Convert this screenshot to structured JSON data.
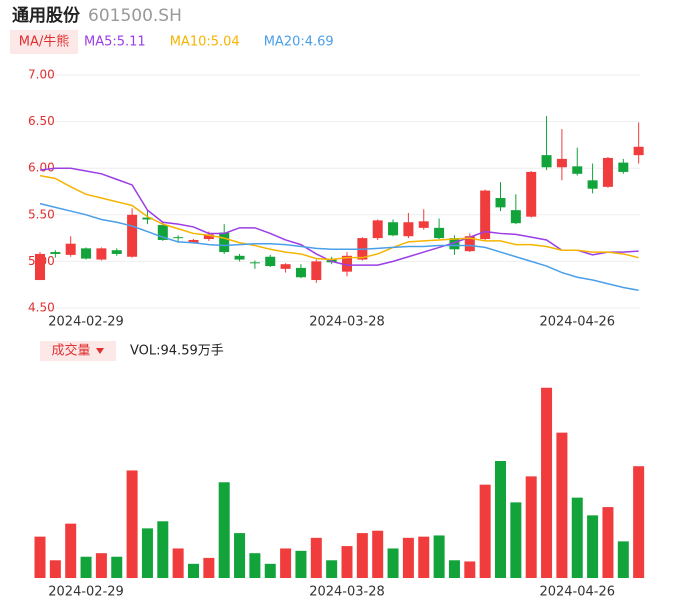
{
  "header": {
    "title": "通用股份",
    "code": "601500.SH"
  },
  "chart_data": [
    {
      "type": "candlestick",
      "button": "MA/牛熊",
      "categories": [
        null,
        null,
        null,
        "2024-02-29",
        null,
        null,
        null,
        null,
        null,
        null,
        null,
        null,
        null,
        null,
        null,
        null,
        null,
        null,
        null,
        null,
        "2024-03-28",
        null,
        null,
        null,
        null,
        null,
        null,
        null,
        null,
        null,
        null,
        null,
        null,
        null,
        null,
        "2024-04-26",
        null,
        null,
        null,
        null
      ],
      "open": [
        4.8,
        5.1,
        5.07,
        5.14,
        5.02,
        5.12,
        5.05,
        5.47,
        5.39,
        5.26,
        5.2,
        5.24,
        5.31,
        5.06,
        4.99,
        5.05,
        4.92,
        4.93,
        4.8,
        5.03,
        4.89,
        5.02,
        5.25,
        5.42,
        5.27,
        5.36,
        5.36,
        5.25,
        5.11,
        5.24,
        5.68,
        5.55,
        5.48,
        6.14,
        6.01,
        6.02,
        5.87,
        5.8,
        6.06,
        6.14
      ],
      "high": [
        5.1,
        5.12,
        5.27,
        5.15,
        5.15,
        5.14,
        5.57,
        5.55,
        5.42,
        5.28,
        5.24,
        5.32,
        5.4,
        5.08,
        5.01,
        5.07,
        4.98,
        4.97,
        5.02,
        5.05,
        5.1,
        5.26,
        5.45,
        5.45,
        5.52,
        5.56,
        5.46,
        5.28,
        5.3,
        5.77,
        5.85,
        5.72,
        5.97,
        6.56,
        6.42,
        6.22,
        6.05,
        6.12,
        6.1,
        6.49
      ],
      "low": [
        4.8,
        5.04,
        5.05,
        5.02,
        5.01,
        5.06,
        5.04,
        5.4,
        5.22,
        5.2,
        5.19,
        5.22,
        5.08,
        5.0,
        4.92,
        4.94,
        4.88,
        4.82,
        4.77,
        4.97,
        4.84,
        5.01,
        5.23,
        5.27,
        5.25,
        5.34,
        5.24,
        5.07,
        5.1,
        5.23,
        5.54,
        5.4,
        5.47,
        5.98,
        5.87,
        5.92,
        5.73,
        5.79,
        5.94,
        6.05
      ],
      "close": [
        5.08,
        5.08,
        5.19,
        5.03,
        5.14,
        5.08,
        5.5,
        5.45,
        5.23,
        5.25,
        5.23,
        5.29,
        5.1,
        5.02,
        4.98,
        4.95,
        4.97,
        4.83,
        5.0,
        4.99,
        5.06,
        5.25,
        5.44,
        5.28,
        5.42,
        5.43,
        5.25,
        5.13,
        5.27,
        5.76,
        5.58,
        5.41,
        5.96,
        6.01,
        6.1,
        5.94,
        5.78,
        6.11,
        5.96,
        6.23
      ],
      "up_color": "#f03c3c",
      "down_color": "#12a33a",
      "series": [
        {
          "name": "MA5:5.11",
          "color": "#9b3ee6",
          "values": [
            5.98,
            6.0,
            6.0,
            5.97,
            5.94,
            5.88,
            5.82,
            5.55,
            5.42,
            5.4,
            5.37,
            5.3,
            5.3,
            5.36,
            5.36,
            5.3,
            5.23,
            5.18,
            5.08,
            5.0,
            4.96,
            4.96,
            4.96,
            5.0,
            5.05,
            5.1,
            5.15,
            5.2,
            5.26,
            5.32,
            5.3,
            5.29,
            5.26,
            5.23,
            5.12,
            5.12,
            5.07,
            5.1,
            5.1,
            5.11
          ]
        },
        {
          "name": "MA10:5.04",
          "color": "#f5b400",
          "values": [
            5.92,
            5.89,
            5.8,
            5.72,
            5.68,
            5.64,
            5.6,
            5.48,
            5.4,
            5.35,
            5.3,
            5.28,
            5.25,
            5.2,
            5.17,
            5.13,
            5.1,
            5.08,
            5.03,
            5.02,
            5.04,
            5.04,
            5.08,
            5.15,
            5.21,
            5.22,
            5.23,
            5.24,
            5.25,
            5.22,
            5.22,
            5.18,
            5.18,
            5.16,
            5.12,
            5.12,
            5.1,
            5.1,
            5.08,
            5.04
          ]
        },
        {
          "name": "MA20:4.69",
          "color": "#4a9fe8",
          "values": [
            5.62,
            5.58,
            5.54,
            5.5,
            5.45,
            5.42,
            5.38,
            5.32,
            5.26,
            5.21,
            5.2,
            5.18,
            5.17,
            5.18,
            5.19,
            5.19,
            5.18,
            5.16,
            5.14,
            5.13,
            5.13,
            5.13,
            5.14,
            5.15,
            5.16,
            5.16,
            5.17,
            5.17,
            5.17,
            5.15,
            5.1,
            5.05,
            5.0,
            4.95,
            4.88,
            4.83,
            4.8,
            4.76,
            4.72,
            4.69
          ]
        }
      ],
      "ylim": [
        4.5,
        7.0
      ],
      "yticks": [
        {
          "value": 7,
          "label": "7.00"
        },
        {
          "value": 6.5,
          "label": "6.50"
        },
        {
          "value": 6,
          "label": "6.00"
        },
        {
          "value": 5.5,
          "label": "5.50"
        },
        {
          "value": 5,
          "label": "5.00"
        },
        {
          "value": 4.5,
          "label": "4.50"
        }
      ],
      "grid": true
    },
    {
      "type": "bar",
      "button": "成交量",
      "label": "VOL:94.59万手",
      "values": [
        35,
        15,
        46,
        18,
        21,
        18,
        91,
        42,
        48,
        25,
        12,
        17,
        81,
        38,
        21,
        12,
        25,
        23,
        34,
        15,
        27,
        38,
        40,
        25,
        34,
        35,
        36,
        15,
        14,
        79,
        99,
        64,
        86,
        161,
        123,
        68,
        53,
        60,
        31,
        94.59
      ],
      "ylim": [
        0,
        165
      ]
    }
  ]
}
